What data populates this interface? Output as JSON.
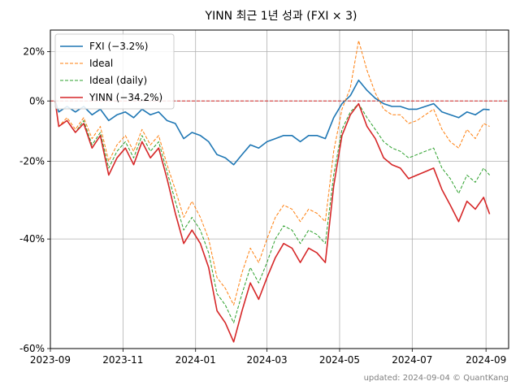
{
  "chart_data": {
    "type": "line",
    "title": "YINN 최근 1년 성과 (FXI × 3)",
    "footer": "updated: 2024-09-04 © QuantKang",
    "y_scale": "log(1+return)",
    "ylim": [
      -60,
      30
    ],
    "xlim": [
      "2023-09-01",
      "2024-09-20"
    ],
    "x_ticks": [
      {
        "date": "2023-09-01",
        "label": "2023-09"
      },
      {
        "date": "2023-11-01",
        "label": "2023-11"
      },
      {
        "date": "2024-01-01",
        "label": "2024-01"
      },
      {
        "date": "2024-03-01",
        "label": "2024-03"
      },
      {
        "date": "2024-05-01",
        "label": "2024-05"
      },
      {
        "date": "2024-07-01",
        "label": "2024-07"
      },
      {
        "date": "2024-09-01",
        "label": "2024-09"
      }
    ],
    "y_ticks": [
      {
        "value": 20,
        "label": "20%"
      },
      {
        "value": 0,
        "label": "0%"
      },
      {
        "value": -20,
        "label": "-20%"
      },
      {
        "value": -40,
        "label": "-40%"
      },
      {
        "value": -60,
        "label": "-60%"
      }
    ],
    "grid": true,
    "legend_position": "top-left",
    "reference_line": {
      "value": 0,
      "color": "#d62728",
      "style": "dashed"
    },
    "series": [
      {
        "name": "FXI (−3.2%)",
        "color": "#1f77b4",
        "style": "solid",
        "points": [
          [
            "2023-09-05",
            0
          ],
          [
            "2023-09-08",
            -4
          ],
          [
            "2023-09-15",
            -2
          ],
          [
            "2023-09-22",
            -4
          ],
          [
            "2023-09-29",
            -2
          ],
          [
            "2023-10-06",
            -5
          ],
          [
            "2023-10-13",
            -3
          ],
          [
            "2023-10-20",
            -7
          ],
          [
            "2023-10-27",
            -5
          ],
          [
            "2023-11-03",
            -4
          ],
          [
            "2023-11-10",
            -6
          ],
          [
            "2023-11-17",
            -3
          ],
          [
            "2023-11-24",
            -5
          ],
          [
            "2023-12-01",
            -4
          ],
          [
            "2023-12-08",
            -7
          ],
          [
            "2023-12-15",
            -8
          ],
          [
            "2023-12-22",
            -13
          ],
          [
            "2023-12-29",
            -11
          ],
          [
            "2024-01-05",
            -12
          ],
          [
            "2024-01-12",
            -14
          ],
          [
            "2024-01-19",
            -18
          ],
          [
            "2024-01-26",
            -19
          ],
          [
            "2024-02-02",
            -21
          ],
          [
            "2024-02-09",
            -18
          ],
          [
            "2024-02-16",
            -15
          ],
          [
            "2024-02-23",
            -16
          ],
          [
            "2024-03-01",
            -14
          ],
          [
            "2024-03-08",
            -13
          ],
          [
            "2024-03-15",
            -12
          ],
          [
            "2024-03-22",
            -12
          ],
          [
            "2024-03-29",
            -14
          ],
          [
            "2024-04-05",
            -12
          ],
          [
            "2024-04-12",
            -12
          ],
          [
            "2024-04-19",
            -13
          ],
          [
            "2024-04-26",
            -6
          ],
          [
            "2024-05-03",
            -1
          ],
          [
            "2024-05-10",
            2
          ],
          [
            "2024-05-17",
            8
          ],
          [
            "2024-05-24",
            4
          ],
          [
            "2024-05-31",
            1
          ],
          [
            "2024-06-07",
            -1
          ],
          [
            "2024-06-14",
            -2
          ],
          [
            "2024-06-21",
            -2
          ],
          [
            "2024-06-28",
            -3
          ],
          [
            "2024-07-05",
            -3
          ],
          [
            "2024-07-12",
            -2
          ],
          [
            "2024-07-19",
            -1
          ],
          [
            "2024-07-26",
            -4
          ],
          [
            "2024-08-02",
            -5
          ],
          [
            "2024-08-09",
            -6
          ],
          [
            "2024-08-16",
            -4
          ],
          [
            "2024-08-23",
            -5
          ],
          [
            "2024-08-30",
            -3
          ],
          [
            "2024-09-04",
            -3.2
          ]
        ]
      },
      {
        "name": "Ideal",
        "color": "#ff7f0e",
        "style": "dashed",
        "points": [
          [
            "2023-09-05",
            0
          ],
          [
            "2023-09-08",
            -9
          ],
          [
            "2023-09-15",
            -6
          ],
          [
            "2023-09-22",
            -10
          ],
          [
            "2023-09-29",
            -6
          ],
          [
            "2023-10-06",
            -13
          ],
          [
            "2023-10-13",
            -9
          ],
          [
            "2023-10-20",
            -20
          ],
          [
            "2023-10-27",
            -15
          ],
          [
            "2023-11-03",
            -12
          ],
          [
            "2023-11-10",
            -17
          ],
          [
            "2023-11-17",
            -10
          ],
          [
            "2023-11-24",
            -15
          ],
          [
            "2023-12-01",
            -12
          ],
          [
            "2023-12-08",
            -21
          ],
          [
            "2023-12-15",
            -28
          ],
          [
            "2023-12-22",
            -35
          ],
          [
            "2023-12-29",
            -31
          ],
          [
            "2024-01-05",
            -35
          ],
          [
            "2024-01-12",
            -40
          ],
          [
            "2024-01-19",
            -48
          ],
          [
            "2024-01-26",
            -50
          ],
          [
            "2024-02-02",
            -53
          ],
          [
            "2024-02-09",
            -47
          ],
          [
            "2024-02-16",
            -42
          ],
          [
            "2024-02-23",
            -45
          ],
          [
            "2024-03-01",
            -40
          ],
          [
            "2024-03-08",
            -35
          ],
          [
            "2024-03-15",
            -32
          ],
          [
            "2024-03-22",
            -33
          ],
          [
            "2024-03-29",
            -36
          ],
          [
            "2024-04-05",
            -33
          ],
          [
            "2024-04-12",
            -34
          ],
          [
            "2024-04-19",
            -36
          ],
          [
            "2024-04-26",
            -17
          ],
          [
            "2024-05-03",
            -3
          ],
          [
            "2024-05-10",
            5
          ],
          [
            "2024-05-17",
            25
          ],
          [
            "2024-05-24",
            12
          ],
          [
            "2024-05-31",
            3
          ],
          [
            "2024-06-07",
            -3
          ],
          [
            "2024-06-14",
            -5
          ],
          [
            "2024-06-21",
            -5
          ],
          [
            "2024-06-28",
            -8
          ],
          [
            "2024-07-05",
            -7
          ],
          [
            "2024-07-12",
            -5
          ],
          [
            "2024-07-19",
            -3
          ],
          [
            "2024-07-26",
            -10
          ],
          [
            "2024-08-02",
            -14
          ],
          [
            "2024-08-09",
            -16
          ],
          [
            "2024-08-16",
            -10
          ],
          [
            "2024-08-23",
            -13
          ],
          [
            "2024-08-30",
            -8
          ],
          [
            "2024-09-04",
            -9
          ]
        ]
      },
      {
        "name": "Ideal (daily)",
        "color": "#2ca02c",
        "style": "dashed",
        "points": [
          [
            "2023-09-05",
            0
          ],
          [
            "2023-09-08",
            -9
          ],
          [
            "2023-09-15",
            -7
          ],
          [
            "2023-09-22",
            -11
          ],
          [
            "2023-09-29",
            -7
          ],
          [
            "2023-10-06",
            -15
          ],
          [
            "2023-10-13",
            -11
          ],
          [
            "2023-10-20",
            -22
          ],
          [
            "2023-10-27",
            -17
          ],
          [
            "2023-11-03",
            -14
          ],
          [
            "2023-11-10",
            -19
          ],
          [
            "2023-11-17",
            -12
          ],
          [
            "2023-11-24",
            -17
          ],
          [
            "2023-12-01",
            -14
          ],
          [
            "2023-12-08",
            -23
          ],
          [
            "2023-12-15",
            -31
          ],
          [
            "2023-12-22",
            -38
          ],
          [
            "2023-12-29",
            -35
          ],
          [
            "2024-01-05",
            -38
          ],
          [
            "2024-01-12",
            -43
          ],
          [
            "2024-01-19",
            -51
          ],
          [
            "2024-01-26",
            -53
          ],
          [
            "2024-02-02",
            -56
          ],
          [
            "2024-02-09",
            -51
          ],
          [
            "2024-02-16",
            -46
          ],
          [
            "2024-02-23",
            -49
          ],
          [
            "2024-03-01",
            -45
          ],
          [
            "2024-03-08",
            -40
          ],
          [
            "2024-03-15",
            -37
          ],
          [
            "2024-03-22",
            -38
          ],
          [
            "2024-03-29",
            -41
          ],
          [
            "2024-04-05",
            -38
          ],
          [
            "2024-04-12",
            -39
          ],
          [
            "2024-04-19",
            -41
          ],
          [
            "2024-04-26",
            -24
          ],
          [
            "2024-05-03",
            -10
          ],
          [
            "2024-05-10",
            -4
          ],
          [
            "2024-05-17",
            -1
          ],
          [
            "2024-05-24",
            -6
          ],
          [
            "2024-05-31",
            -10
          ],
          [
            "2024-06-07",
            -14
          ],
          [
            "2024-06-14",
            -16
          ],
          [
            "2024-06-21",
            -17
          ],
          [
            "2024-06-28",
            -19
          ],
          [
            "2024-07-05",
            -18
          ],
          [
            "2024-07-12",
            -17
          ],
          [
            "2024-07-19",
            -16
          ],
          [
            "2024-07-26",
            -22
          ],
          [
            "2024-08-02",
            -25
          ],
          [
            "2024-08-09",
            -29
          ],
          [
            "2024-08-16",
            -24
          ],
          [
            "2024-08-23",
            -26
          ],
          [
            "2024-08-30",
            -22
          ],
          [
            "2024-09-04",
            -24
          ]
        ]
      },
      {
        "name": "YINN (−34.2%)",
        "color": "#d62728",
        "style": "solid",
        "points": [
          [
            "2023-09-05",
            0
          ],
          [
            "2023-09-08",
            -9
          ],
          [
            "2023-09-15",
            -7
          ],
          [
            "2023-09-22",
            -11
          ],
          [
            "2023-09-29",
            -8
          ],
          [
            "2023-10-06",
            -16
          ],
          [
            "2023-10-13",
            -12
          ],
          [
            "2023-10-20",
            -24
          ],
          [
            "2023-10-27",
            -19
          ],
          [
            "2023-11-03",
            -16
          ],
          [
            "2023-11-10",
            -21
          ],
          [
            "2023-11-17",
            -14
          ],
          [
            "2023-11-24",
            -19
          ],
          [
            "2023-12-01",
            -16
          ],
          [
            "2023-12-08",
            -25
          ],
          [
            "2023-12-15",
            -34
          ],
          [
            "2023-12-22",
            -41
          ],
          [
            "2023-12-29",
            -38
          ],
          [
            "2024-01-05",
            -41
          ],
          [
            "2024-01-12",
            -46
          ],
          [
            "2024-01-19",
            -54
          ],
          [
            "2024-01-26",
            -56
          ],
          [
            "2024-02-02",
            -59
          ],
          [
            "2024-02-09",
            -54
          ],
          [
            "2024-02-16",
            -49
          ],
          [
            "2024-02-23",
            -52
          ],
          [
            "2024-03-01",
            -48
          ],
          [
            "2024-03-08",
            -44
          ],
          [
            "2024-03-15",
            -41
          ],
          [
            "2024-03-22",
            -42
          ],
          [
            "2024-03-29",
            -45
          ],
          [
            "2024-04-05",
            -42
          ],
          [
            "2024-04-12",
            -43
          ],
          [
            "2024-04-19",
            -45
          ],
          [
            "2024-04-26",
            -27
          ],
          [
            "2024-05-03",
            -12
          ],
          [
            "2024-05-10",
            -5
          ],
          [
            "2024-05-17",
            -1
          ],
          [
            "2024-05-24",
            -9
          ],
          [
            "2024-05-31",
            -13
          ],
          [
            "2024-06-07",
            -19
          ],
          [
            "2024-06-14",
            -21
          ],
          [
            "2024-06-21",
            -22
          ],
          [
            "2024-06-28",
            -25
          ],
          [
            "2024-07-05",
            -24
          ],
          [
            "2024-07-12",
            -23
          ],
          [
            "2024-07-19",
            -22
          ],
          [
            "2024-07-26",
            -28
          ],
          [
            "2024-08-02",
            -32
          ],
          [
            "2024-08-09",
            -36
          ],
          [
            "2024-08-16",
            -31
          ],
          [
            "2024-08-23",
            -33
          ],
          [
            "2024-08-30",
            -30
          ],
          [
            "2024-09-04",
            -34.2
          ]
        ]
      }
    ]
  }
}
